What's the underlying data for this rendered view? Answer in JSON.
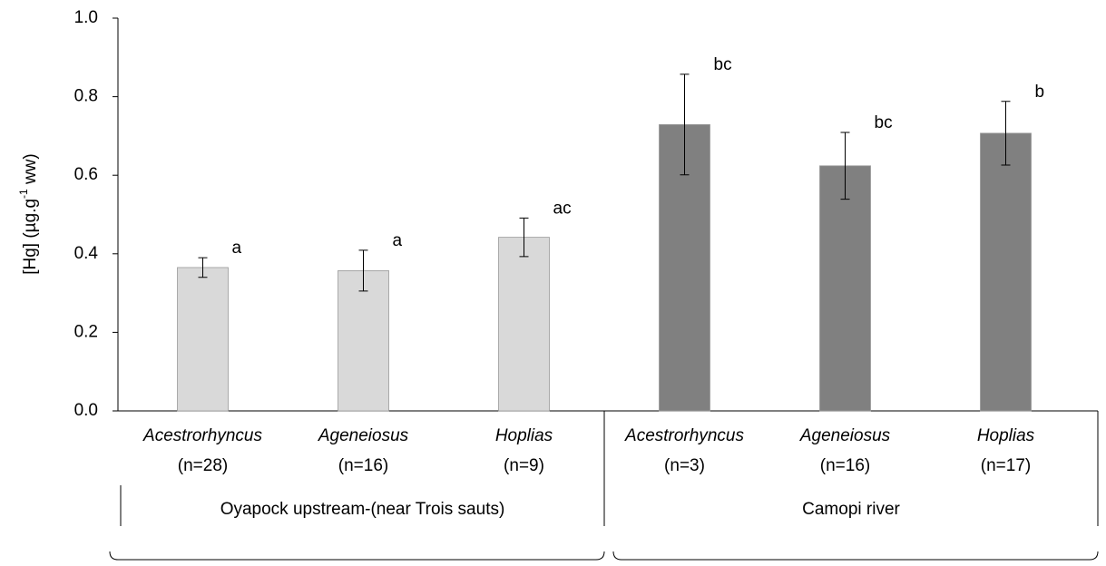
{
  "chart_data": {
    "type": "bar",
    "ylabel": "[Hg] (µg.g",
    "ylabel_sup": "-1",
    "ylabel_end": " ww)",
    "categories": [
      "Acestrorhyncus",
      "Ageneiosus",
      "Hoplias",
      "Acestrorhyncus",
      "Ageneiosus",
      "Hoplias"
    ],
    "n_labels": [
      "(n=28)",
      "(n=16)",
      "(n=9)",
      "(n=3)",
      "(n=16)",
      "(n=17)"
    ],
    "values": [
      0.365,
      0.357,
      0.442,
      0.729,
      0.624,
      0.707
    ],
    "errors": [
      0.025,
      0.052,
      0.049,
      0.128,
      0.085,
      0.081
    ],
    "letters": [
      "a",
      "a",
      "ac",
      "bc",
      "bc",
      "b"
    ],
    "colors": [
      "#d9d9d9",
      "#d9d9d9",
      "#d9d9d9",
      "#808080",
      "#808080",
      "#808080"
    ],
    "groups": [
      {
        "label": "Oyapock upstream-(near Trois sauts)",
        "size": 3
      },
      {
        "label": "Camopi river",
        "size": 3
      }
    ],
    "ylim": [
      0,
      1
    ],
    "yticks": [
      {
        "value": 0,
        "label": "0.0"
      },
      0.2,
      0.4,
      0.6,
      0.8,
      {
        "value": 1,
        "label": "1.0"
      }
    ]
  }
}
